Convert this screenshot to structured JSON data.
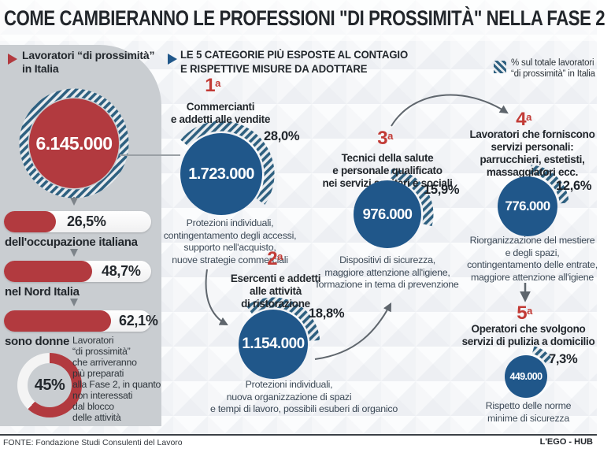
{
  "title": "COME CAMBIERANNO LE PROFESSIONI \"DI PROSSIMITÀ\" NELLA FASE 2",
  "left_panel": {
    "header": "Lavoratori “di prossimità”\nin Italia",
    "total_workers": "6.145.000",
    "stats": [
      {
        "pct": "26,5%",
        "label": "dell'occupazione italiana"
      },
      {
        "pct": "48,7%",
        "label": "nel Nord Italia"
      },
      {
        "pct": "62,1%",
        "label": "sono donne"
      }
    ],
    "donut": {
      "pct": "45%",
      "caption": "Lavoratori\n“di prossimità”\nche arriveranno\npiù preparati\nalla Fase 2, in quanto\nnon interessati\ndal blocco\ndelle attività"
    }
  },
  "main": {
    "header": "LE 5 CATEGORIE PIÙ ESPOSTE AL CONTAGIO\nE RISPETTIVE MISURE DA ADOTTARE",
    "legend": "% sul totale lavoratori\n“di prossimità” in Italia",
    "rank_suffix": "a",
    "categories": [
      {
        "rank": "1",
        "name": "Commercianti\ne addetti alle vendite",
        "value": "1.723.000",
        "pct": "28,0%",
        "measures": "Protezioni individuali,\ncontingentamento degli accessi,\nsupporto nell'acquisto,\nnuove strategie commerciali"
      },
      {
        "rank": "2",
        "name": "Esercenti e addetti\nalle attività\ndi ristorazione",
        "value": "1.154.000",
        "pct": "18,8%",
        "measures": "Protezioni individuali,\nnuova organizzazione di spazi\ne tempi di lavoro, possibili esuberi di organico"
      },
      {
        "rank": "3",
        "name": "Tecnici della salute\ne personale qualificato\nnei servizi sanitari e sociali",
        "value": "976.000",
        "pct": "15,9%",
        "measures": "Dispositivi di sicurezza,\nmaggiore attenzione all'igiene,\nformazione in tema di prevenzione"
      },
      {
        "rank": "4",
        "name": "Lavoratori che forniscono\nservizi personali:\nparrucchieri, estetisti,\nmassaggiatori ecc.",
        "value": "776.000",
        "pct": "12,6%",
        "measures": "Riorganizzazione del mestiere\ne degli spazi,\ncontingentamento delle entrate,\nmaggiore attenzione all'igiene"
      },
      {
        "rank": "5",
        "name": "Operatori che svolgono\nservizi di pulizia a domicilio",
        "value": "449.000",
        "pct": "7,3%",
        "measures": "Rispetto delle norme\nminime di sicurezza"
      }
    ]
  },
  "footer": {
    "source": "FONTE: Fondazione Studi Consulenti del Lavoro",
    "credit": "L'EGO - HUB"
  },
  "colors": {
    "red": "#b23a3f",
    "rank_red": "#c23b36",
    "blue": "#20578a",
    "hatch_blue": "#2e6080",
    "panel_gray": "#c9cdd1"
  },
  "chart_data": {
    "type": "bar",
    "title": "COME CAMBIERANNO LE PROFESSIONI \"DI PROSSIMITÀ\" NELLA FASE 2",
    "totals": {
      "lavoratori_di_prossimita_italia": 6145000,
      "pct_occupazione_italiana": 26.5,
      "pct_nord_italia": 48.7,
      "pct_donne": 62.1,
      "pct_piu_preparati_fase2": 45
    },
    "categories": [
      "Commercianti e addetti alle vendite",
      "Esercenti e addetti alle attività di ristorazione",
      "Tecnici della salute e personale qualificato nei servizi sanitari e sociali",
      "Lavoratori che forniscono servizi personali: parrucchieri, estetisti, massaggiatori ecc.",
      "Operatori che svolgono servizi di pulizia a domicilio"
    ],
    "series": [
      {
        "name": "Lavoratori",
        "values": [
          1723000,
          1154000,
          976000,
          776000,
          449000
        ]
      },
      {
        "name": "% sul totale lavoratori di prossimità in Italia",
        "values": [
          28.0,
          18.8,
          15.9,
          12.6,
          7.3
        ]
      }
    ],
    "legend_position": "top-right",
    "source": "Fondazione Studi Consulenti del Lavoro"
  }
}
